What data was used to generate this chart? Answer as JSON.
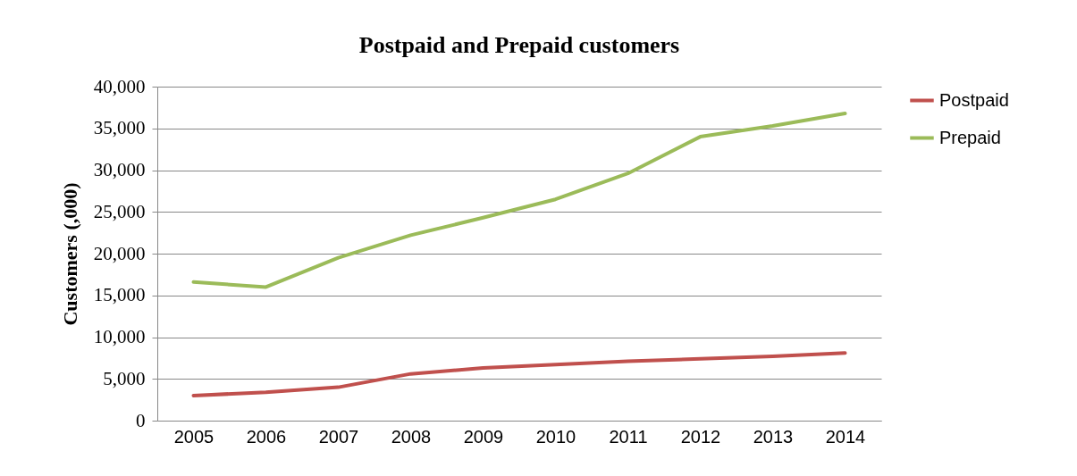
{
  "chart_data": {
    "type": "line",
    "title": "Postpaid and Prepaid customers",
    "ylabel": "Customers (,000)",
    "categories": [
      "2005",
      "2006",
      "2007",
      "2008",
      "2009",
      "2010",
      "2011",
      "2012",
      "2013",
      "2014"
    ],
    "series": [
      {
        "name": "Postpaid",
        "color": "#c0504d",
        "values": [
          3000,
          3400,
          4000,
          5600,
          6300,
          6700,
          7100,
          7400,
          7700,
          8100
        ]
      },
      {
        "name": "Prepaid",
        "color": "#9bbb59",
        "values": [
          16600,
          16000,
          19500,
          22200,
          24300,
          26500,
          29600,
          34000,
          35300,
          36800
        ]
      }
    ],
    "ylim": [
      0,
      40000
    ],
    "yticks": [
      0,
      {
        "value": 5000,
        "label": "5,000"
      },
      {
        "value": 10000,
        "label": "10,000"
      },
      {
        "value": 15000,
        "label": "15,000"
      },
      {
        "value": 20000,
        "label": "20,000"
      },
      {
        "value": 25000,
        "label": "25,000"
      },
      {
        "value": 30000,
        "label": "30,000"
      },
      {
        "value": 35000,
        "label": "35,000"
      },
      {
        "value": 40000,
        "label": "40,000"
      }
    ],
    "grid": "y",
    "legend": "right",
    "marker": "none",
    "line_style": "solid"
  }
}
